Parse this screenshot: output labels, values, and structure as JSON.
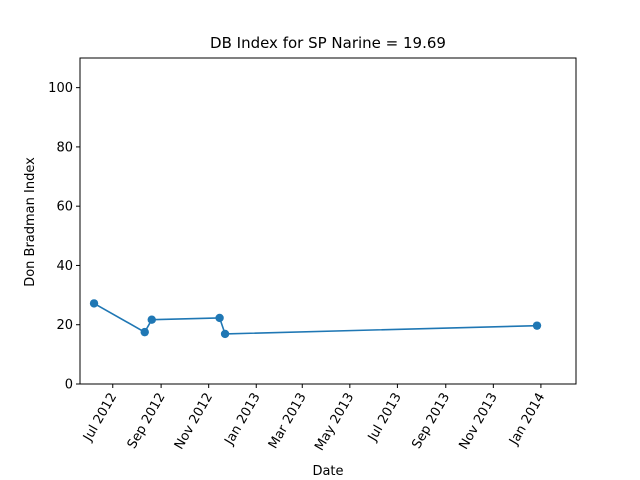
{
  "chart_data": {
    "type": "line",
    "title": "DB Index for SP Narine = 19.69",
    "xlabel": "Date",
    "ylabel": "Don Bradman Index",
    "ylim": [
      0,
      110
    ],
    "xlim": [
      "2012-05-20",
      "2014-02-15"
    ],
    "yticks": [
      0,
      20,
      40,
      60,
      80,
      100
    ],
    "xticks": [
      {
        "date": "2012-07-01",
        "label": "Jul 2012"
      },
      {
        "date": "2012-09-01",
        "label": "Sep 2012"
      },
      {
        "date": "2012-11-01",
        "label": "Nov 2012"
      },
      {
        "date": "2013-01-01",
        "label": "Jan 2013"
      },
      {
        "date": "2013-03-01",
        "label": "Mar 2013"
      },
      {
        "date": "2013-05-01",
        "label": "May 2013"
      },
      {
        "date": "2013-07-01",
        "label": "Jul 2013"
      },
      {
        "date": "2013-09-01",
        "label": "Sep 2013"
      },
      {
        "date": "2013-11-01",
        "label": "Nov 2013"
      },
      {
        "date": "2014-01-01",
        "label": "Jan 2014"
      }
    ],
    "grid": false,
    "series": [
      {
        "color": "#1f77b4",
        "x": [
          "2012-06-07",
          "2012-08-11",
          "2012-08-20",
          "2012-11-15",
          "2012-11-22",
          "2013-12-27"
        ],
        "y": [
          27.2,
          17.5,
          21.7,
          22.3,
          16.9,
          19.69
        ]
      }
    ]
  }
}
